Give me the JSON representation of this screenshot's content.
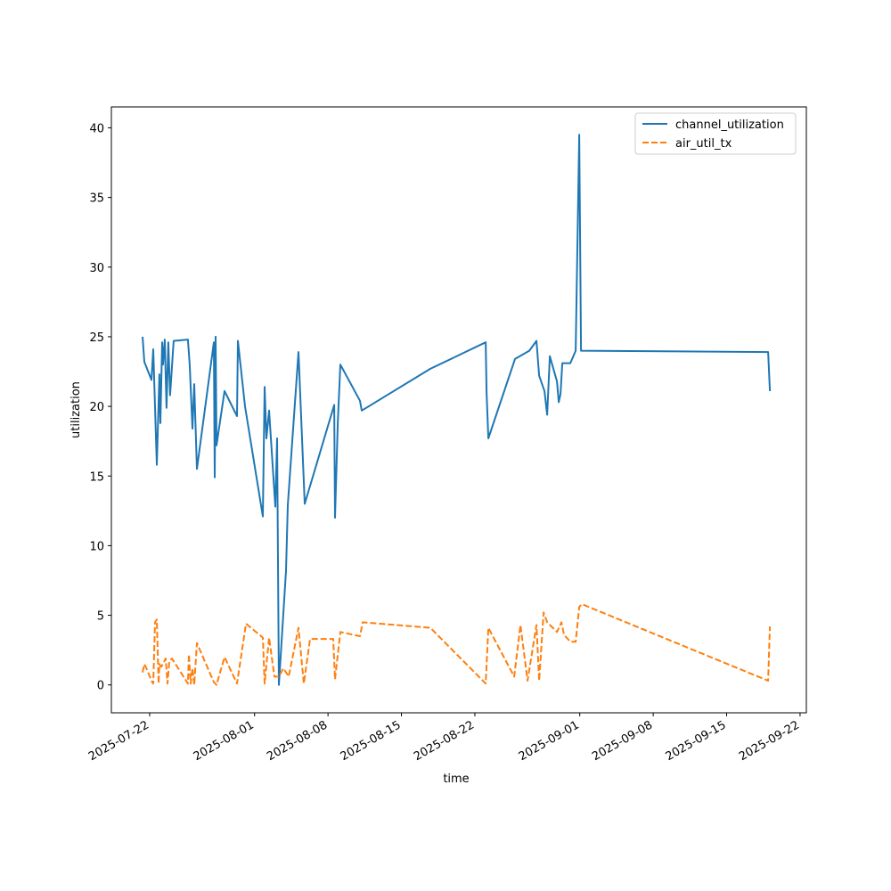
{
  "chart_data": {
    "type": "line",
    "title": "",
    "xlabel": "time",
    "ylabel": "utilization",
    "x_unit": "days since 2025-07-22",
    "xlim": [
      -3.65,
      62.6
    ],
    "ylim": [
      -2.0,
      41.5
    ],
    "grid": false,
    "legend_position": "top-right",
    "x_ticks": [
      {
        "value": 0,
        "label": "2025-07-22"
      },
      {
        "value": 10,
        "label": "2025-08-01"
      },
      {
        "value": 17,
        "label": "2025-08-08"
      },
      {
        "value": 24,
        "label": "2025-08-15"
      },
      {
        "value": 31,
        "label": "2025-08-22"
      },
      {
        "value": 41,
        "label": "2025-09-01"
      },
      {
        "value": 48,
        "label": "2025-09-08"
      },
      {
        "value": 55,
        "label": "2025-09-15"
      },
      {
        "value": 62,
        "label": "2025-09-22"
      }
    ],
    "y_ticks": [
      {
        "value": 0,
        "label": "0"
      },
      {
        "value": 5,
        "label": "5"
      },
      {
        "value": 10,
        "label": "10"
      },
      {
        "value": 15,
        "label": "15"
      },
      {
        "value": 20,
        "label": "20"
      },
      {
        "value": 25,
        "label": "25"
      },
      {
        "value": 30,
        "label": "30"
      },
      {
        "value": 35,
        "label": "35"
      },
      {
        "value": 40,
        "label": "40"
      }
    ],
    "series": [
      {
        "name": "channel_utilization",
        "color": "#1f77b4",
        "style": "solid",
        "x": [
          -0.68,
          -0.51,
          0.17,
          0.34,
          0.68,
          0.93,
          1.02,
          1.19,
          1.27,
          1.44,
          1.61,
          1.78,
          1.95,
          2.29,
          3.65,
          3.82,
          4.08,
          4.25,
          4.5,
          6.12,
          6.2,
          6.29,
          6.37,
          7.14,
          8.33,
          8.41,
          9.09,
          10.79,
          10.96,
          11.13,
          11.38,
          11.98,
          12.15,
          12.32,
          13.0,
          13.17,
          14.19,
          14.78,
          17.59,
          17.67,
          17.93,
          18.18,
          20.05,
          20.22,
          26.76,
          32.03,
          32.12,
          32.29,
          34.83,
          36.19,
          36.87,
          37.13,
          37.64,
          37.89,
          38.15,
          38.83,
          39.0,
          39.17,
          39.34,
          40.1,
          40.61,
          40.95,
          41.12,
          58.96,
          59.13
        ],
        "y": [
          25.0,
          23.2,
          21.9,
          24.1,
          15.8,
          22.3,
          18.8,
          24.6,
          23.0,
          24.8,
          19.9,
          24.6,
          20.8,
          24.7,
          24.8,
          23.0,
          18.4,
          21.6,
          15.5,
          24.6,
          14.9,
          25.0,
          17.2,
          21.1,
          19.3,
          24.7,
          20.0,
          12.1,
          21.4,
          17.7,
          19.7,
          12.8,
          17.7,
          0.0,
          8.2,
          12.9,
          23.9,
          13.0,
          20.1,
          12.0,
          18.8,
          23.0,
          20.4,
          19.7,
          22.7,
          24.6,
          21.0,
          17.7,
          23.4,
          24.0,
          24.7,
          22.2,
          21.1,
          19.4,
          23.6,
          21.8,
          20.3,
          20.9,
          23.1,
          23.1,
          24.0,
          39.5,
          24.0,
          23.9,
          21.1
        ]
      },
      {
        "name": "air_util_tx",
        "color": "#ff7f0e",
        "style": "dashed",
        "x": [
          -0.68,
          -0.51,
          -0.25,
          0.17,
          0.34,
          0.51,
          0.68,
          0.85,
          0.93,
          1.1,
          1.27,
          1.53,
          1.7,
          1.87,
          2.12,
          2.72,
          3.65,
          3.74,
          3.91,
          4.08,
          4.25,
          4.5,
          6.12,
          6.37,
          7.14,
          8.33,
          9.18,
          10.79,
          10.96,
          11.38,
          11.89,
          12.32,
          12.74,
          13.25,
          14.19,
          14.7,
          15.29,
          17.5,
          17.67,
          18.18,
          20.05,
          20.31,
          26.76,
          32.03,
          32.29,
          34.75,
          35.34,
          36.02,
          36.87,
          37.13,
          37.55,
          37.89,
          38.83,
          39.25,
          39.51,
          40.1,
          40.61,
          40.95,
          41.21,
          58.96,
          59.13
        ],
        "y": [
          0.9,
          1.5,
          1.1,
          0.3,
          0.1,
          4.5,
          4.7,
          0.1,
          1.5,
          1.3,
          1.5,
          1.9,
          0.1,
          1.7,
          1.9,
          1.2,
          0.1,
          2.2,
          0.1,
          1.2,
          0.0,
          3.0,
          0.2,
          0.0,
          2.0,
          0.1,
          4.4,
          3.4,
          0.1,
          3.4,
          0.6,
          0.6,
          1.2,
          0.6,
          4.1,
          0.1,
          3.3,
          3.3,
          0.4,
          3.8,
          3.5,
          4.5,
          4.1,
          0.1,
          4.1,
          0.6,
          4.3,
          0.3,
          4.3,
          0.3,
          5.2,
          4.5,
          3.8,
          4.5,
          3.6,
          3.1,
          3.1,
          5.6,
          5.8,
          0.3,
          4.2
        ]
      }
    ]
  }
}
